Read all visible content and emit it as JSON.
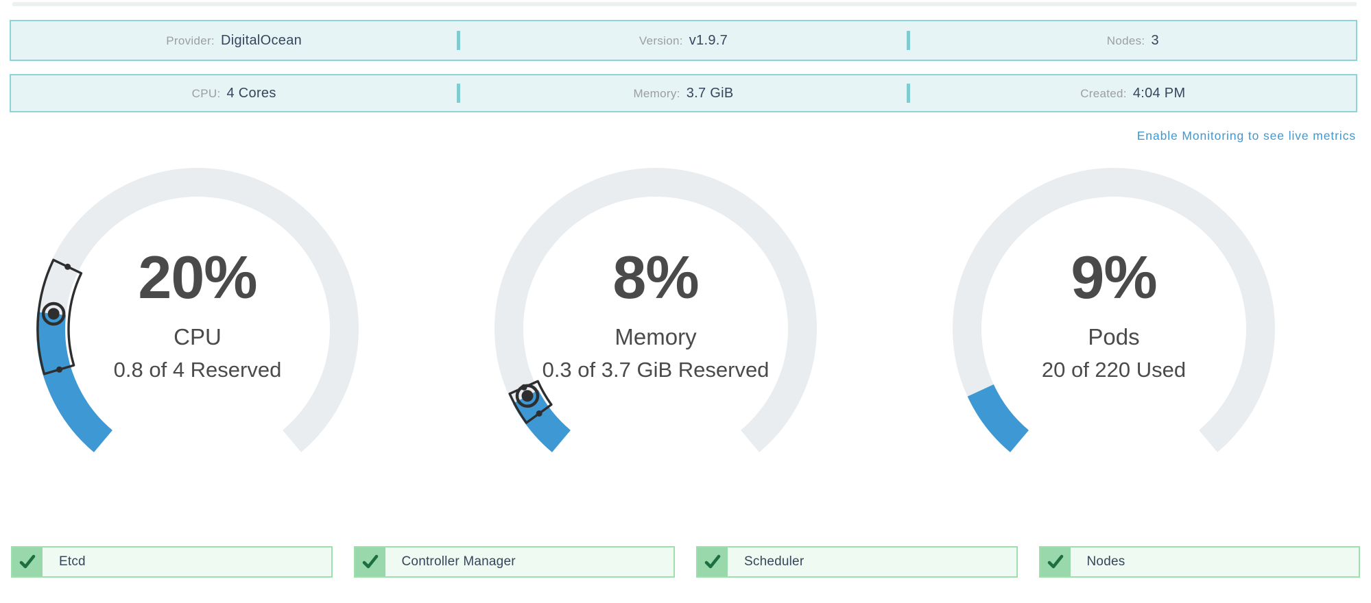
{
  "info_bars": [
    {
      "items": [
        {
          "label": "Provider:",
          "value": "DigitalOcean"
        },
        {
          "label": "Version:",
          "value": "v1.9.7"
        },
        {
          "label": "Nodes:",
          "value": "3"
        }
      ]
    },
    {
      "items": [
        {
          "label": "CPU:",
          "value": "4 Cores"
        },
        {
          "label": "Memory:",
          "value": "3.7 GiB"
        },
        {
          "label": "Created:",
          "value": "4:04 PM"
        }
      ]
    }
  ],
  "monitoring_link": {
    "label": "Enable Monitoring to see live metrics"
  },
  "chart_data": [
    {
      "type": "gauge",
      "percent": 20,
      "display_percent": "20%",
      "label": "CPU",
      "sublabel": "0.8 of 4 Reserved",
      "used": 0.8,
      "total": 4,
      "unit": "cores",
      "range_marker": {
        "min_percent": 12,
        "max_percent": 27,
        "value_percent": 20
      }
    },
    {
      "type": "gauge",
      "percent": 8,
      "display_percent": "8%",
      "label": "Memory",
      "sublabel": "0.3 of 3.7 GiB Reserved",
      "used": 0.3,
      "total": 3.7,
      "unit": "GiB",
      "range_marker": {
        "min_percent": 5,
        "max_percent": 9.3,
        "value_percent": 8
      }
    },
    {
      "type": "gauge",
      "percent": 9,
      "display_percent": "9%",
      "label": "Pods",
      "sublabel": "20 of 220 Used",
      "used": 20,
      "total": 220,
      "unit": "pods",
      "range_marker": null
    }
  ],
  "components": [
    {
      "label": "Etcd",
      "status": "healthy"
    },
    {
      "label": "Controller Manager",
      "status": "healthy"
    },
    {
      "label": "Scheduler",
      "status": "healthy"
    },
    {
      "label": "Nodes",
      "status": "healthy"
    }
  ],
  "colors": {
    "accent_blue": "#3d98d3",
    "gauge_track": "#e9edef",
    "marker_dark": "#2e2e2e",
    "teal_border": "#8ed3d6",
    "teal_bg": "#e7f4f5",
    "teal_divider": "#7fcbd1",
    "green_check_bg": "#98d8ab",
    "green_check": "#1d6f42",
    "green_border": "#9edfae",
    "green_bg": "#eefaf2",
    "text_dark": "#4a4a4a",
    "text_navy": "#35455c",
    "text_gray": "#9b9ea1"
  }
}
